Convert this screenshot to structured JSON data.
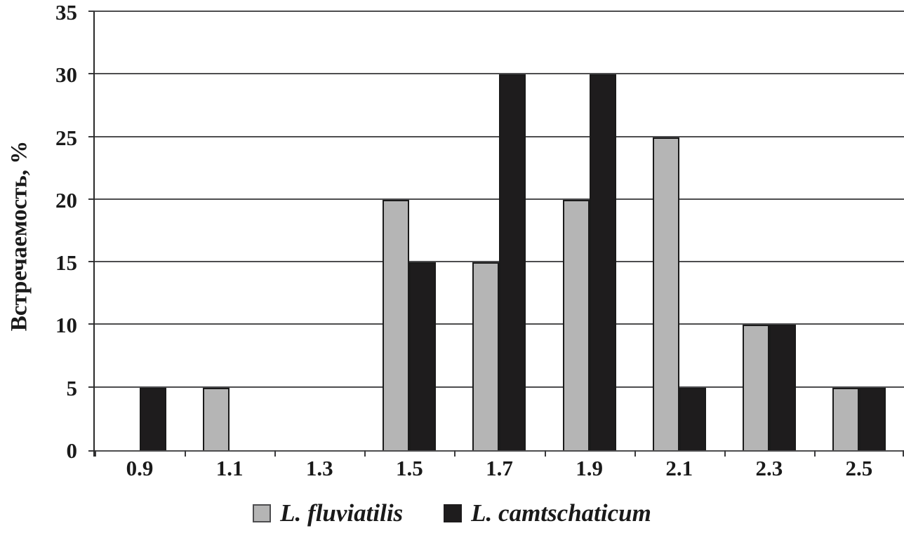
{
  "chart_data": {
    "type": "bar",
    "title": "",
    "ylabel": "Встречаемость, %",
    "xlabel": "",
    "categories": [
      "0.9",
      "1.1",
      "1.3",
      "1.5",
      "1.7",
      "1.9",
      "2.1",
      "2.3",
      "2.5"
    ],
    "series": [
      {
        "name": "L. fluviatilis",
        "color": "#b5b5b5",
        "border": "#1a1a1a",
        "values": [
          0,
          5,
          0,
          20,
          15,
          20,
          25,
          10,
          5
        ]
      },
      {
        "name": "L. camtschaticum",
        "color": "#1e1c1d",
        "border": "#1a1a1a",
        "values": [
          5,
          0,
          0,
          15,
          30,
          30,
          5,
          10,
          5
        ]
      }
    ],
    "y_ticks": [
      0,
      5,
      10,
      15,
      20,
      25,
      30,
      35
    ],
    "ylim": [
      0,
      35
    ],
    "grid": "horizontal",
    "legend_position": "bottom",
    "colors": {
      "gridline": "#4d4d4f",
      "axis": "#2a2a2a",
      "text": "#1a1a1a",
      "background": "#ffffff"
    }
  }
}
